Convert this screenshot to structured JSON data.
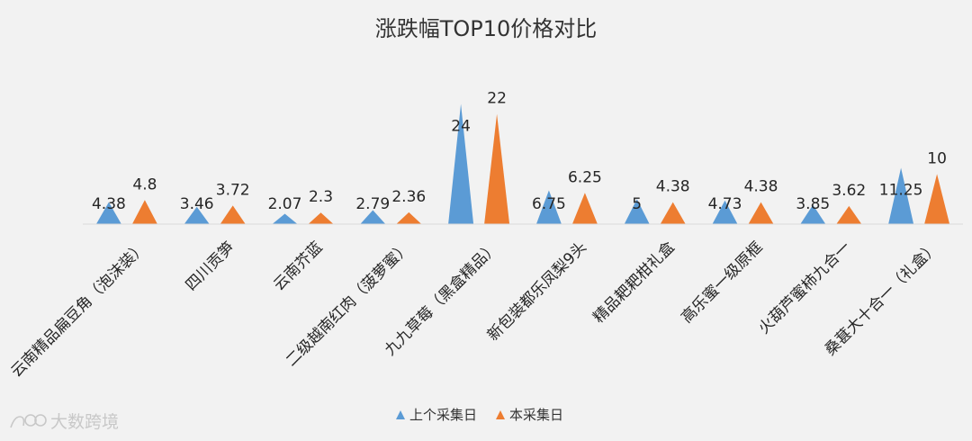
{
  "chart_data": {
    "type": "bar",
    "title": "涨跌幅TOP10价格对比",
    "categories": [
      "云南精品扁豆角（泡沫装）",
      "四川贡笋",
      "云南芥蓝",
      "二级越南红肉（菠萝蜜）",
      "九九草莓（黑盒精品）",
      "新包装都乐凤梨9头",
      "精品耙耙柑礼盒",
      "高乐蜜一级原框",
      "火葫芦蜜柿九合一",
      "桑葚大十合一（礼盒）"
    ],
    "series": [
      {
        "name": "上个采集日",
        "color": "#5b9bd5",
        "values": [
          4.38,
          3.46,
          2.07,
          2.79,
          24,
          6.75,
          5,
          4.73,
          3.85,
          11.25
        ]
      },
      {
        "name": "本采集日",
        "color": "#ed7d31",
        "values": [
          4.8,
          3.72,
          2.3,
          2.36,
          22,
          6.25,
          4.38,
          4.38,
          3.62,
          10
        ]
      }
    ],
    "ylim": [
      0,
      25
    ],
    "grid": false,
    "legend": "bottom",
    "bar_shape": "triangle"
  },
  "watermark": {
    "text": "大数跨境"
  }
}
